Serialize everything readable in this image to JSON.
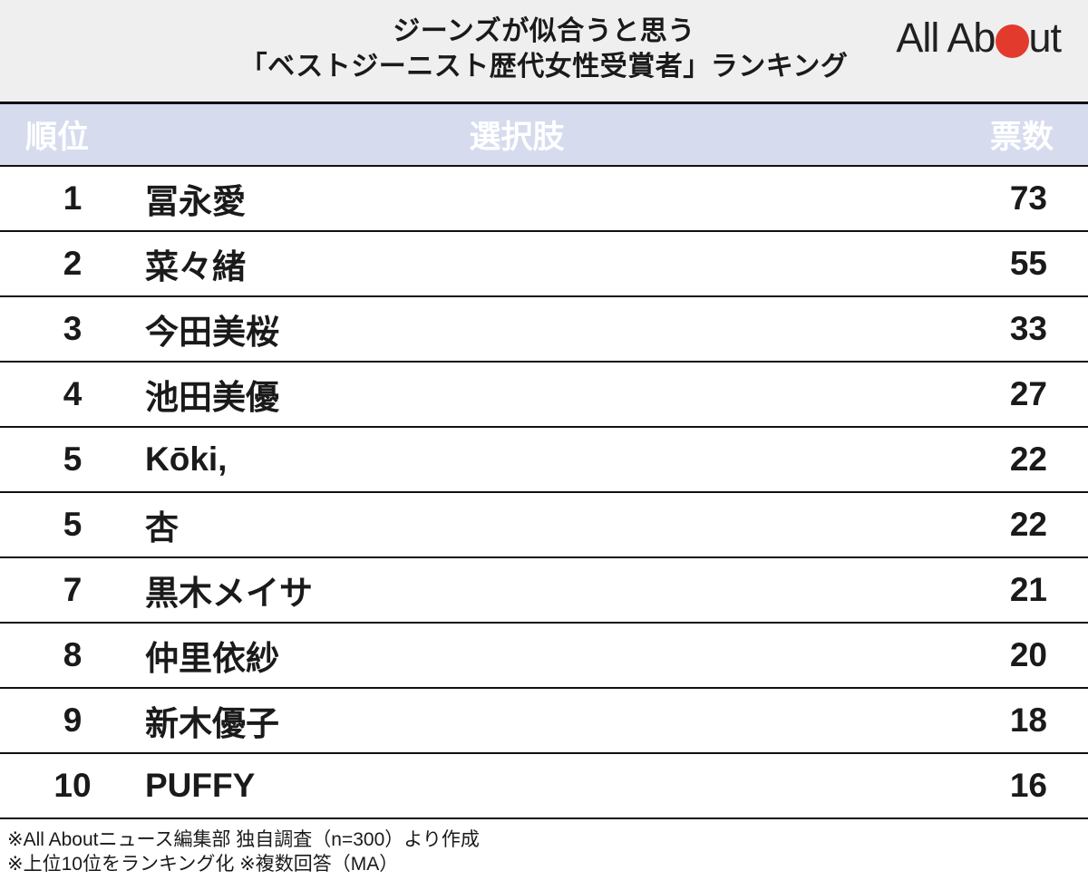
{
  "header": {
    "title_line1": "ジーンズが似合うと思う",
    "title_line2": "「ベストジーニスト歴代女性受賞者」ランキング",
    "logo": {
      "name": "All About",
      "text_before_dot": "All Ab",
      "text_after_dot": "ut"
    }
  },
  "table": {
    "columns": {
      "rank": "順位",
      "choice": "選択肢",
      "votes": "票数"
    },
    "rows": [
      {
        "rank": "1",
        "name": "冨永愛",
        "votes": "73"
      },
      {
        "rank": "2",
        "name": "菜々緒",
        "votes": "55"
      },
      {
        "rank": "3",
        "name": "今田美桜",
        "votes": "33"
      },
      {
        "rank": "4",
        "name": "池田美優",
        "votes": "27"
      },
      {
        "rank": "5",
        "name": "Kōki,",
        "votes": "22"
      },
      {
        "rank": "5",
        "name": "杏",
        "votes": "22"
      },
      {
        "rank": "7",
        "name": "黒木メイサ",
        "votes": "21"
      },
      {
        "rank": "8",
        "name": "仲里依紗",
        "votes": "20"
      },
      {
        "rank": "9",
        "name": "新木優子",
        "votes": "18"
      },
      {
        "rank": "10",
        "name": "PUFFY",
        "votes": "16"
      }
    ]
  },
  "footer": {
    "note1": "※All Aboutニュース編集部 独自調査（n=300）より作成",
    "note2": "※上位10位をランキング化 ※複数回答（MA）"
  },
  "colors": {
    "titlebar_bg": "#f0eff0",
    "header_row_bg": "#d6dcee",
    "header_row_text": "#ffffff",
    "border": "#111111",
    "text": "#1a1a1a",
    "logo_red": "#e23b2e"
  },
  "chart_data": {
    "type": "table",
    "title": "ジーンズが似合うと思う「ベストジーニスト歴代女性受賞者」ランキング",
    "columns": [
      "順位",
      "選択肢",
      "票数"
    ],
    "rows": [
      [
        1,
        "冨永愛",
        73
      ],
      [
        2,
        "菜々緒",
        55
      ],
      [
        3,
        "今田美桜",
        33
      ],
      [
        4,
        "池田美優",
        27
      ],
      [
        5,
        "Kōki,",
        22
      ],
      [
        5,
        "杏",
        22
      ],
      [
        7,
        "黒木メイサ",
        21
      ],
      [
        8,
        "仲里依紗",
        20
      ],
      [
        9,
        "新木優子",
        18
      ],
      [
        10,
        "PUFFY",
        16
      ]
    ],
    "notes": [
      "※All Aboutニュース編集部 独自調査（n=300）より作成",
      "※上位10位をランキング化 ※複数回答（MA）"
    ],
    "source": "All About"
  }
}
